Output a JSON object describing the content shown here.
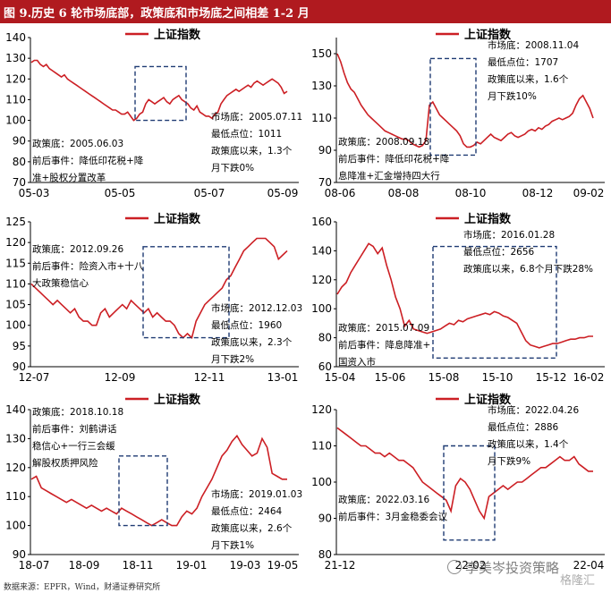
{
  "page": {
    "title": "图 9.历史 6 轮市场底部，政策底和市场底之间相差 1-2 月",
    "source": "数据来源：EPFR，Wind，财通证券研究所",
    "watermark": "李美岑投资策略",
    "watermark2": "格隆汇"
  },
  "colors": {
    "header_bg": "#b01a1f",
    "line": "#cc1f24",
    "box": "#1f3b73"
  },
  "chart_data": [
    {
      "type": "line",
      "legend": "上证指数",
      "x_ticks": [
        "05-03",
        "05-05",
        "05-07",
        "05-09"
      ],
      "ylim": [
        70,
        140
      ],
      "y_ticks": [
        70,
        80,
        90,
        100,
        110,
        120,
        130,
        140
      ],
      "series": [
        {
          "name": "上证指数",
          "values": [
            128,
            129,
            129,
            127,
            126,
            127,
            125,
            124,
            123,
            122,
            121,
            122,
            120,
            119,
            118,
            117,
            116,
            115,
            114,
            113,
            112,
            111,
            110,
            109,
            108,
            107,
            106,
            105,
            105,
            104,
            103,
            103,
            104,
            102,
            100,
            101,
            103,
            104,
            108,
            110,
            109,
            108,
            109,
            110,
            111,
            109,
            108,
            110,
            111,
            112,
            110,
            109,
            108,
            106,
            105,
            107,
            104,
            103,
            102,
            102,
            101,
            103,
            104,
            108,
            110,
            112,
            113,
            114,
            115,
            114,
            115,
            116,
            117,
            116,
            118,
            119,
            118,
            117,
            118,
            119,
            120,
            119,
            118,
            116,
            113,
            114
          ]
        }
      ],
      "box_x": [
        0.39,
        0.58
      ],
      "box_y": [
        100,
        126
      ],
      "annotations": {
        "policy": [
          "政策底：2005.06.03",
          "前后事件：降低印花税+降",
          "准+股权分置改革"
        ],
        "market": [
          "市场底：2005.07.11",
          "最低点位：1011",
          "政策底以来，1.3个",
          "月下跌0%"
        ]
      }
    },
    {
      "type": "line",
      "legend": "上证指数",
      "x_ticks": [
        "08-06",
        "08-08",
        "08-10",
        "08-12",
        "09-02"
      ],
      "ylim": [
        70,
        160
      ],
      "y_ticks": [
        70,
        90,
        110,
        130,
        150
      ],
      "series": [
        {
          "name": "上证指数",
          "values": [
            150,
            145,
            138,
            132,
            128,
            126,
            122,
            118,
            115,
            112,
            110,
            108,
            106,
            104,
            102,
            101,
            100,
            99,
            98,
            97,
            97,
            96,
            94,
            93,
            92,
            93,
            96,
            118,
            120,
            116,
            112,
            110,
            108,
            106,
            104,
            102,
            99,
            94,
            92,
            92,
            93,
            95,
            94,
            96,
            98,
            100,
            98,
            97,
            96,
            98,
            100,
            101,
            99,
            98,
            99,
            100,
            102,
            103,
            102,
            104,
            103,
            105,
            106,
            108,
            109,
            110,
            109,
            110,
            111,
            113,
            118,
            122,
            124,
            120,
            116,
            110
          ]
        }
      ],
      "box_x": [
        0.35,
        0.52
      ],
      "box_y": [
        87,
        147
      ],
      "annotations": {
        "policy": [
          "政策底：2008.09.18",
          "前后事件：降低印花税+降",
          "息降准+汇金增持四大行"
        ],
        "market": [
          "市场底：2008.11.04",
          "最低点位：1707",
          "政策底以来，1.6个",
          "月下跌10%"
        ]
      }
    },
    {
      "type": "line",
      "legend": "上证指数",
      "x_ticks": [
        "12-07",
        "12-09",
        "12-11",
        "13-01"
      ],
      "ylim": [
        90,
        125
      ],
      "y_ticks": [
        90,
        95,
        100,
        105,
        110,
        115,
        120,
        125
      ],
      "series": [
        {
          "name": "上证指数",
          "values": [
            110,
            109,
            108,
            107,
            106,
            105,
            106,
            105,
            104,
            103,
            104,
            102,
            101,
            101,
            100,
            100,
            103,
            104,
            102,
            103,
            104,
            105,
            104,
            106,
            105,
            104,
            103,
            104,
            102,
            103,
            102,
            101,
            101,
            100,
            98,
            97,
            98,
            97,
            101,
            103,
            105,
            106,
            107,
            108,
            109,
            111,
            112,
            114,
            116,
            118,
            119,
            120,
            121,
            121,
            121,
            120,
            119,
            116,
            117,
            118
          ]
        }
      ],
      "box_x": [
        0.42,
        0.74
      ],
      "box_y": [
        97,
        119
      ],
      "annotations": {
        "policy": [
          "政策底：2012.09.26",
          "前后事件：险资入市+十八",
          "大政策稳信心"
        ],
        "market": [
          "市场底：2012.12.03",
          "最低点位：1960",
          "政策底以来，2.3个",
          "月下跌2%"
        ]
      }
    },
    {
      "type": "line",
      "legend": "上证指数",
      "x_ticks": [
        "15-04",
        "15-06",
        "15-08",
        "15-10",
        "15-12",
        "16-02"
      ],
      "ylim": [
        60,
        160
      ],
      "y_ticks": [
        60,
        80,
        100,
        120,
        140,
        160
      ],
      "series": [
        {
          "name": "上证指数",
          "values": [
            110,
            115,
            118,
            125,
            130,
            135,
            140,
            145,
            143,
            138,
            142,
            130,
            120,
            108,
            100,
            88,
            92,
            86,
            85,
            84,
            83,
            84,
            85,
            86,
            88,
            90,
            89,
            92,
            91,
            93,
            94,
            95,
            96,
            97,
            96,
            98,
            97,
            95,
            94,
            92,
            90,
            84,
            78,
            75,
            74,
            73,
            74,
            75,
            76,
            76,
            77,
            78,
            79,
            79,
            80,
            80,
            81,
            81
          ]
        }
      ],
      "box_x": [
        0.36,
        0.82
      ],
      "box_y": [
        66,
        143
      ],
      "annotations": {
        "policy": [
          "政策底：2015.07.09",
          "前后事件：降息降准+",
          "国资入市"
        ],
        "market": [
          "市场底：2016.01.28",
          "最低点位：2656",
          "政策底以来，6.8个月下跌28%"
        ]
      }
    },
    {
      "type": "line",
      "legend": "上证指数",
      "x_ticks": [
        "18-07",
        "18-09",
        "18-11",
        "19-01",
        "19-03",
        "19-05"
      ],
      "ylim": [
        90,
        140
      ],
      "y_ticks": [
        90,
        100,
        110,
        120,
        130,
        140
      ],
      "series": [
        {
          "name": "上证指数",
          "values": [
            116,
            117,
            113,
            112,
            111,
            110,
            109,
            108,
            109,
            108,
            107,
            106,
            107,
            106,
            105,
            106,
            105,
            104,
            106,
            105,
            104,
            103,
            102,
            101,
            100,
            101,
            102,
            101,
            100,
            100,
            103,
            105,
            104,
            106,
            110,
            113,
            116,
            120,
            124,
            126,
            129,
            131,
            128,
            126,
            124,
            125,
            130,
            127,
            118,
            117,
            116,
            116
          ]
        }
      ],
      "box_x": [
        0.33,
        0.51
      ],
      "box_y": [
        100,
        124
      ],
      "annotations": {
        "policy": [
          "政策底：2018.10.18",
          "前后事件：刘鹤讲话",
          "稳信心+一行三会缓",
          "解股权质押风险"
        ],
        "market": [
          "市场底：2019.01.03",
          "最低点位：2464",
          "政策底以来，2.6个",
          "月下跌1%"
        ]
      }
    },
    {
      "type": "line",
      "legend": "上证指数",
      "x_ticks": [
        "21-12",
        "22-02",
        "22-04"
      ],
      "ylim": [
        80,
        120
      ],
      "y_ticks": [
        80,
        90,
        100,
        110,
        120
      ],
      "series": [
        {
          "name": "上证指数",
          "values": [
            115,
            114,
            113,
            112,
            111,
            110,
            110,
            109,
            108,
            108,
            107,
            108,
            107,
            106,
            106,
            105,
            104,
            102,
            100,
            99,
            98,
            97,
            96,
            95,
            92,
            99,
            101,
            100,
            98,
            95,
            92,
            90,
            96,
            97,
            98,
            99,
            98,
            99,
            100,
            100,
            101,
            102,
            103,
            104,
            104,
            105,
            106,
            107,
            106,
            106,
            107,
            105,
            104,
            103,
            103
          ]
        }
      ],
      "box_x": [
        0.4,
        0.59
      ],
      "box_y": [
        84,
        110
      ],
      "annotations": {
        "policy": [
          "政策底：2022.03.16",
          "前后事件：3月金稳委会议"
        ],
        "market": [
          "市场底：2022.04.26",
          "最低点位：2886",
          "政策底以来，1.4个",
          "月下跌9%"
        ]
      }
    }
  ]
}
